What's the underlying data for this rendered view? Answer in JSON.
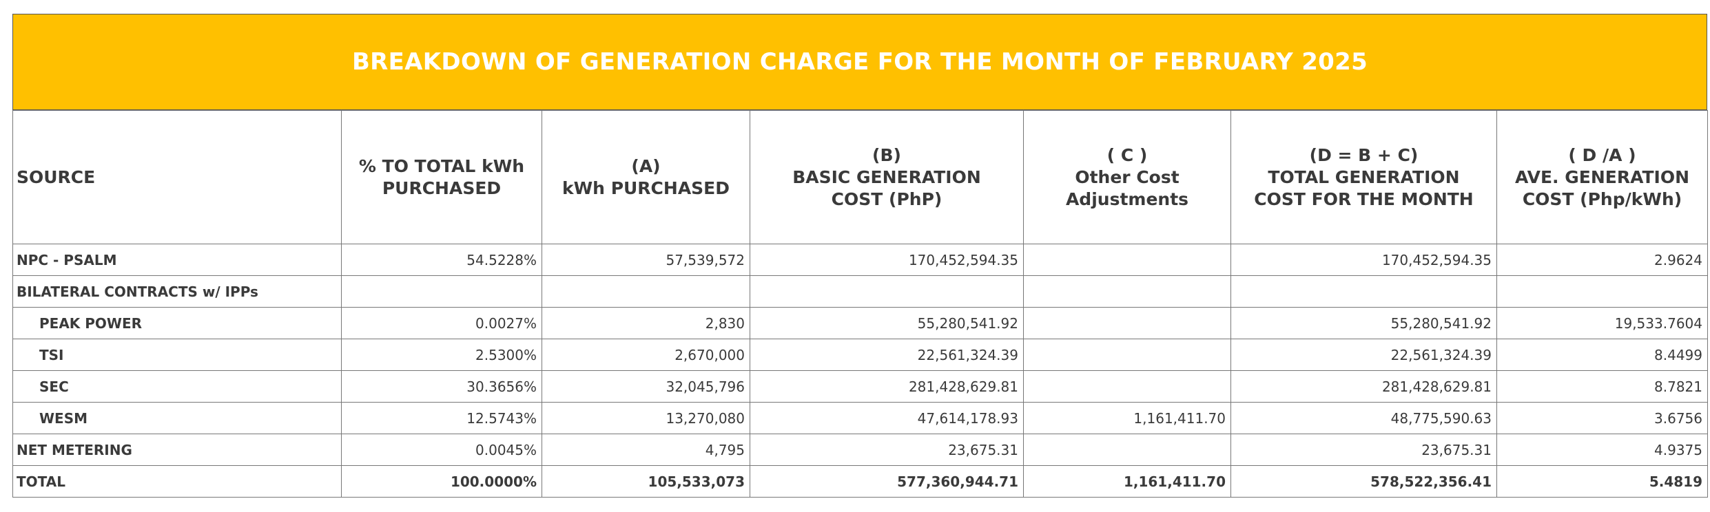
{
  "title": "BREAKDOWN OF GENERATION CHARGE FOR THE MONTH OF FEBRUARY 2025",
  "headers": {
    "source": "SOURCE",
    "pct": [
      "% TO TOTAL kWh",
      "PURCHASED"
    ],
    "a": [
      "(A)",
      "kWh PURCHASED"
    ],
    "b": [
      "(B)",
      "BASIC GENERATION",
      "COST (PhP)"
    ],
    "c": [
      "( C )",
      "Other Cost",
      "Adjustments"
    ],
    "d": [
      "(D = B + C)",
      "TOTAL GENERATION",
      "COST FOR THE MONTH"
    ],
    "e": [
      "( D /A )",
      "AVE. GENERATION",
      "COST (Php/kWh)"
    ]
  },
  "rows": [
    {
      "source": "NPC - PSALM",
      "pct": "54.5228%",
      "kwh": "57,539,572",
      "basic": "170,452,594.35",
      "other": "",
      "total": "170,452,594.35",
      "ave": "2.9624"
    },
    {
      "source": "BILATERAL CONTRACTS w/ IPPs",
      "pct": "",
      "kwh": "",
      "basic": "",
      "other": "",
      "total": "",
      "ave": ""
    },
    {
      "source": "PEAK POWER",
      "pct": "0.0027%",
      "kwh": "2,830",
      "basic": "55,280,541.92",
      "other": "",
      "total": "55,280,541.92",
      "ave": "19,533.7604"
    },
    {
      "source": "TSI",
      "pct": "2.5300%",
      "kwh": "2,670,000",
      "basic": "22,561,324.39",
      "other": "",
      "total": "22,561,324.39",
      "ave": "8.4499"
    },
    {
      "source": "SEC",
      "pct": "30.3656%",
      "kwh": "32,045,796",
      "basic": "281,428,629.81",
      "other": "",
      "total": "281,428,629.81",
      "ave": "8.7821"
    },
    {
      "source": "WESM",
      "pct": "12.5743%",
      "kwh": "13,270,080",
      "basic": "47,614,178.93",
      "other": "1,161,411.70",
      "total": "48,775,590.63",
      "ave": "3.6756"
    },
    {
      "source": "NET METERING",
      "pct": "0.0045%",
      "kwh": "4,795",
      "basic": "23,675.31",
      "other": "",
      "total": "23,675.31",
      "ave": "4.9375"
    }
  ],
  "total_row": {
    "source": "TOTAL",
    "pct": "100.0000%",
    "kwh": "105,533,073",
    "basic": "577,360,944.71",
    "other": "1,161,411.70",
    "total": "578,522,356.41",
    "ave": "5.4819"
  },
  "colors": {
    "title_bg": "#ffc000",
    "title_text": "#ffffff",
    "grid": "#777777"
  }
}
